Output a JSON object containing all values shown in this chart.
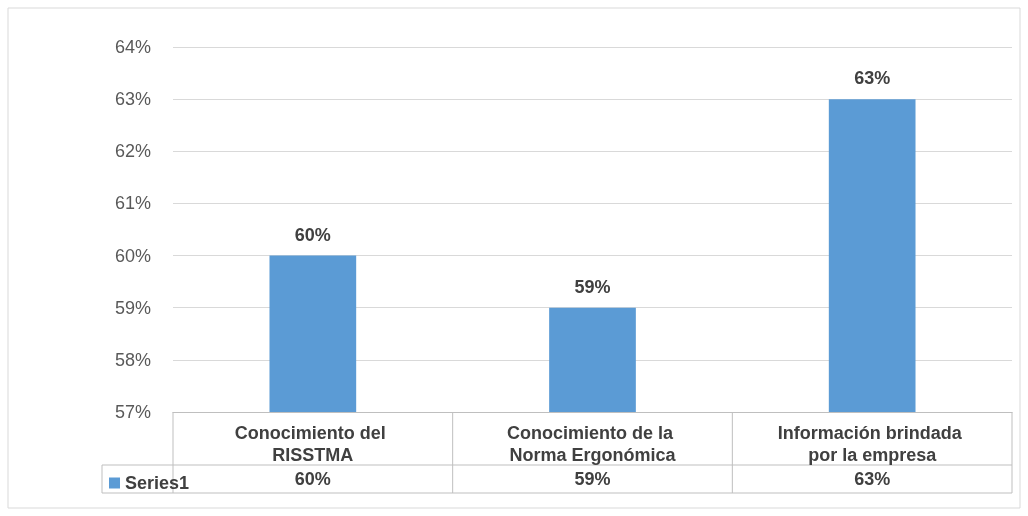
{
  "chart_data": {
    "type": "bar",
    "categories": [
      "Conocimiento del RISSTMA",
      "Conocimiento de la Norma Ergonómica",
      "Información brindada por la empresa"
    ],
    "series": [
      {
        "name": "Series1",
        "color": "#5b9bd5",
        "values": [
          60,
          59,
          63
        ],
        "value_labels": [
          "60%",
          "59%",
          "63%"
        ]
      }
    ],
    "ylim": [
      57,
      64
    ],
    "yticks": [
      {
        "value": 57,
        "label": "57%"
      },
      {
        "value": 58,
        "label": "58%"
      },
      {
        "value": 59,
        "label": "59%"
      },
      {
        "value": 60,
        "label": "60%"
      },
      {
        "value": 61,
        "label": "61%"
      },
      {
        "value": 62,
        "label": "62%"
      },
      {
        "value": 63,
        "label": "63%"
      },
      {
        "value": 64,
        "label": "64%"
      }
    ],
    "grid": true,
    "legend": "bottom left"
  }
}
